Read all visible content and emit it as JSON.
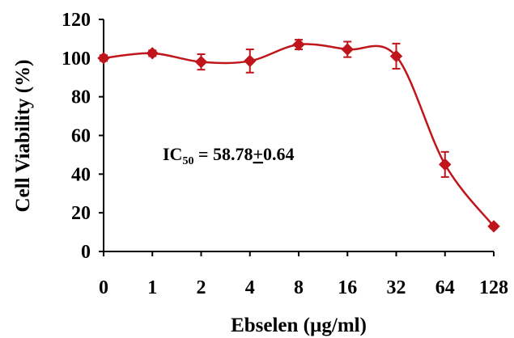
{
  "chart_data": {
    "type": "line",
    "title": "",
    "xlabel": "Ebselen (µg/ml)",
    "ylabel": "Cell Viability  (%)",
    "categories": [
      "0",
      "1",
      "2",
      "4",
      "8",
      "16",
      "32",
      "64",
      "128"
    ],
    "series": [
      {
        "values": [
          100,
          102.5,
          98,
          98.5,
          107,
          104.5,
          101,
          45,
          13
        ],
        "errors": [
          1.5,
          1.5,
          4,
          6,
          2.5,
          4,
          6.5,
          6.5,
          1
        ]
      }
    ],
    "ylim": [
      0,
      120
    ],
    "yticks": [
      "0",
      "20",
      "40",
      "60",
      "80",
      "100",
      "120"
    ],
    "grid": false,
    "legend": "none",
    "annotation": {
      "prefix": "IC",
      "subscript": "50",
      "rest": " = 58.78",
      "pm": "+",
      "tail": "0.64"
    },
    "colors": {
      "series": "#c0151b",
      "axis": "#000000"
    }
  }
}
